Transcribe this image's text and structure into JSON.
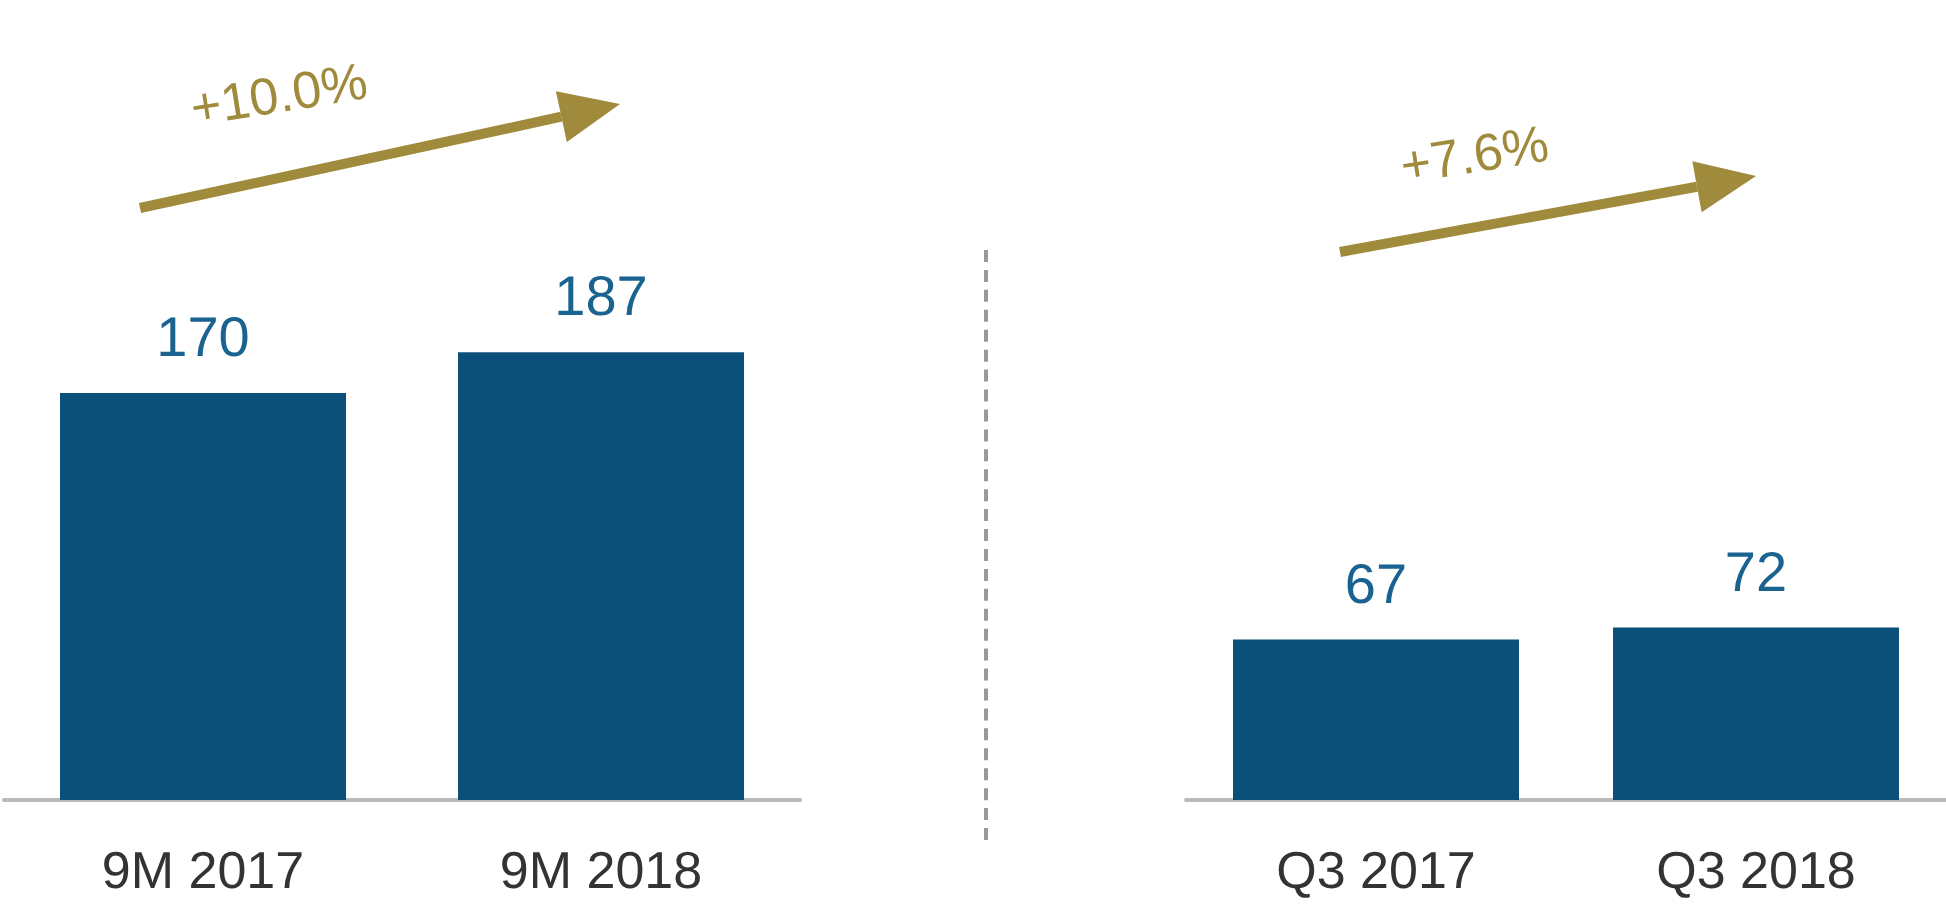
{
  "chart_data": [
    {
      "type": "bar",
      "categories": [
        "9M 2017",
        "9M 2018"
      ],
      "values": [
        170,
        187
      ],
      "color": "#0b5079",
      "data_labels": true,
      "annotations": [
        "+10.0%"
      ]
    },
    {
      "type": "bar",
      "categories": [
        "Q3 2017",
        "Q3 2018"
      ],
      "values": [
        67,
        72
      ],
      "color": "#0b5079",
      "data_labels": true,
      "annotations": [
        "+7.6%"
      ]
    }
  ]
}
